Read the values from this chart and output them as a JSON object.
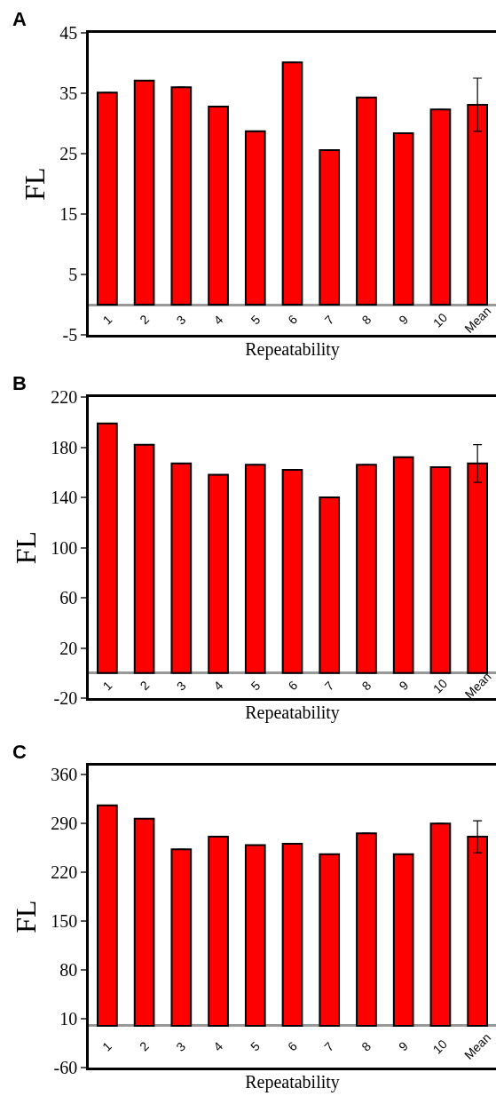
{
  "chart_data": [
    {
      "type": "bar",
      "title": "A",
      "xlabel": "Repeatability",
      "ylabel": "FL",
      "categories": [
        "1",
        "2",
        "3",
        "4",
        "5",
        "6",
        "7",
        "8",
        "9",
        "10",
        "Mean"
      ],
      "values": [
        35.1,
        37.1,
        36.0,
        32.8,
        28.7,
        40.1,
        25.6,
        34.3,
        28.4,
        32.3,
        33.1
      ],
      "errors": [
        null,
        null,
        null,
        null,
        null,
        null,
        null,
        null,
        null,
        null,
        4.4
      ],
      "color": "#ff0000",
      "ylim": [
        -5,
        45
      ],
      "yticks": [
        -5,
        5,
        15,
        25,
        35,
        45
      ]
    },
    {
      "type": "bar",
      "title": "B",
      "xlabel": "Repeatability",
      "ylabel": "FL",
      "categories": [
        "1",
        "2",
        "3",
        "4",
        "5",
        "6",
        "7",
        "8",
        "9",
        "10",
        "Mean"
      ],
      "values": [
        199,
        182,
        167,
        158,
        166,
        162,
        140,
        166,
        172,
        164,
        167
      ],
      "errors": [
        null,
        null,
        null,
        null,
        null,
        null,
        null,
        null,
        null,
        null,
        15
      ],
      "color": "#ff0000",
      "ylim": [
        -20,
        220
      ],
      "yticks": [
        -20,
        20,
        60,
        100,
        140,
        180,
        220
      ]
    },
    {
      "type": "bar",
      "title": "C",
      "xlabel": "Repeatability",
      "ylabel": "FL",
      "categories": [
        "1",
        "2",
        "3",
        "4",
        "5",
        "6",
        "7",
        "8",
        "9",
        "10",
        "Mean"
      ],
      "values": [
        316,
        297,
        253,
        271,
        259,
        261,
        246,
        276,
        246,
        290,
        271
      ],
      "errors": [
        null,
        null,
        null,
        null,
        null,
        null,
        null,
        null,
        null,
        null,
        23
      ],
      "color": "#ff0000",
      "ylim": [
        -60,
        373
      ],
      "yticks": [
        -60,
        10,
        80,
        150,
        220,
        290,
        360
      ]
    }
  ]
}
